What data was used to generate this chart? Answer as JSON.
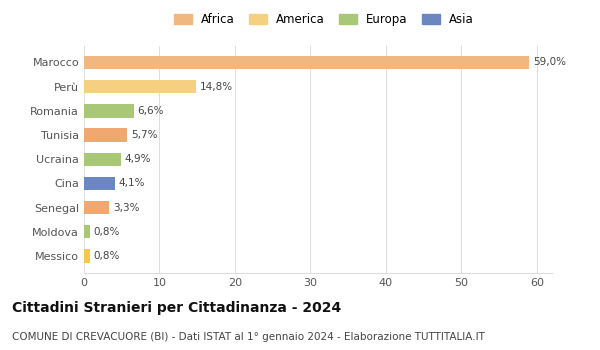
{
  "categories": [
    "Messico",
    "Moldova",
    "Senegal",
    "Cina",
    "Ucraina",
    "Tunisia",
    "Romania",
    "Perù",
    "Marocco"
  ],
  "values": [
    0.8,
    0.8,
    3.3,
    4.1,
    4.9,
    5.7,
    6.6,
    14.8,
    59.0
  ],
  "labels": [
    "0,8%",
    "0,8%",
    "3,3%",
    "4,1%",
    "4,9%",
    "5,7%",
    "6,6%",
    "14,8%",
    "59,0%"
  ],
  "colors": [
    "#f5c84c",
    "#a8c878",
    "#f0a870",
    "#6b86c0",
    "#a8c878",
    "#f0a870",
    "#a8c878",
    "#f5d080",
    "#f0b880"
  ],
  "legend_labels": [
    "Africa",
    "America",
    "Europa",
    "Asia"
  ],
  "legend_colors": [
    "#f0b880",
    "#f5d080",
    "#a8c878",
    "#6b86c0"
  ],
  "xlim": [
    0,
    62
  ],
  "xticks": [
    0,
    10,
    20,
    30,
    40,
    50,
    60
  ],
  "title": "Cittadini Stranieri per Cittadinanza - 2024",
  "subtitle": "COMUNE DI CREVACUORE (BI) - Dati ISTAT al 1° gennaio 2024 - Elaborazione TUTTITALIA.IT",
  "title_fontsize": 10,
  "subtitle_fontsize": 7.5,
  "bar_height": 0.55,
  "background_color": "#ffffff",
  "grid_color": "#dddddd",
  "label_fontsize": 7.5,
  "ytick_fontsize": 8,
  "xtick_fontsize": 8
}
